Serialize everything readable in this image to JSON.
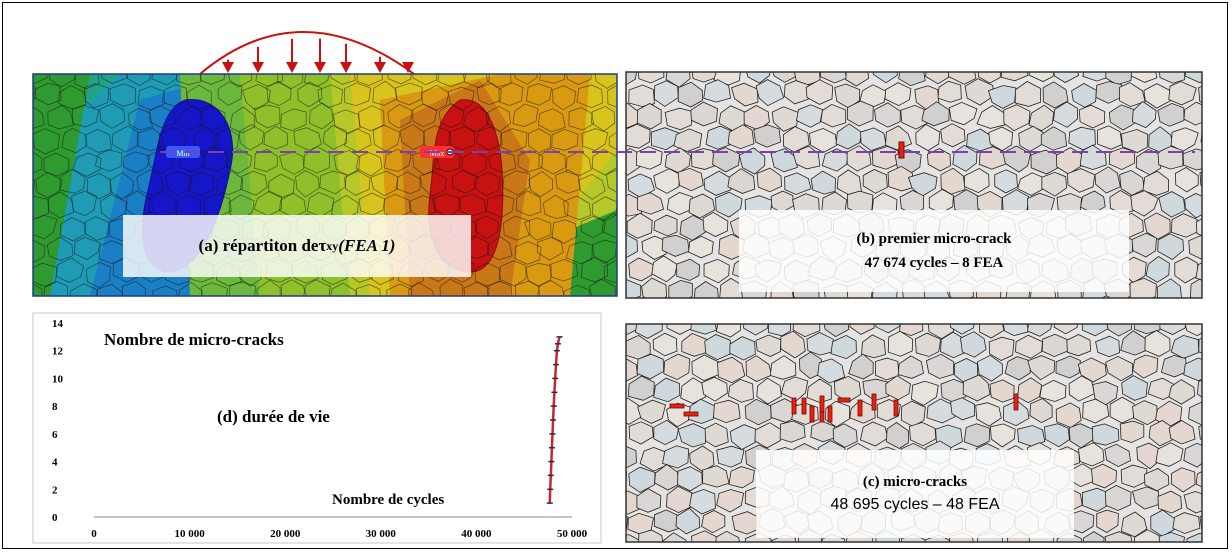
{
  "panel_a": {
    "label_prefix": "(a) répartiton de ",
    "tau": "τ",
    "tau_sub": "xy",
    "label_suffix": "(FEA 1)",
    "min_tag": "Min",
    "max_tag": "Max"
  },
  "panel_b": {
    "line1": "(b) premier micro-crack",
    "line2": "47 674 cycles – 8 FEA"
  },
  "panel_c": {
    "line1": "(c) micro-cracks",
    "line2": "48 695 cycles – 48 FEA"
  },
  "colors": {
    "crack": "#e8220f",
    "load_arrow": "#cc1010",
    "dashed_line": "#7b3fb0",
    "chart_line": "#c8282a"
  },
  "chart_data": {
    "type": "line",
    "title": "Nombre de micro-cracks",
    "annotation": "(d) durée de vie",
    "xlabel": "Nombre de cycles",
    "ylabel": "",
    "xlim": [
      0,
      50000
    ],
    "ylim": [
      0,
      14
    ],
    "xticks": [
      "0",
      "10 000",
      "20 000",
      "30 000",
      "40 000",
      "50 000"
    ],
    "yticks": [
      "0",
      "2",
      "4",
      "6",
      "8",
      "10",
      "12",
      "14"
    ],
    "series": [
      {
        "x": [
          47674,
          47720,
          47780,
          47840,
          47900,
          47960,
          48020,
          48090,
          48160,
          48240,
          48330,
          48420,
          48520,
          48695
        ],
        "y": [
          1,
          2,
          3,
          4,
          5,
          6,
          7,
          8,
          9,
          10,
          11,
          12,
          12.5,
          13
        ]
      }
    ]
  }
}
